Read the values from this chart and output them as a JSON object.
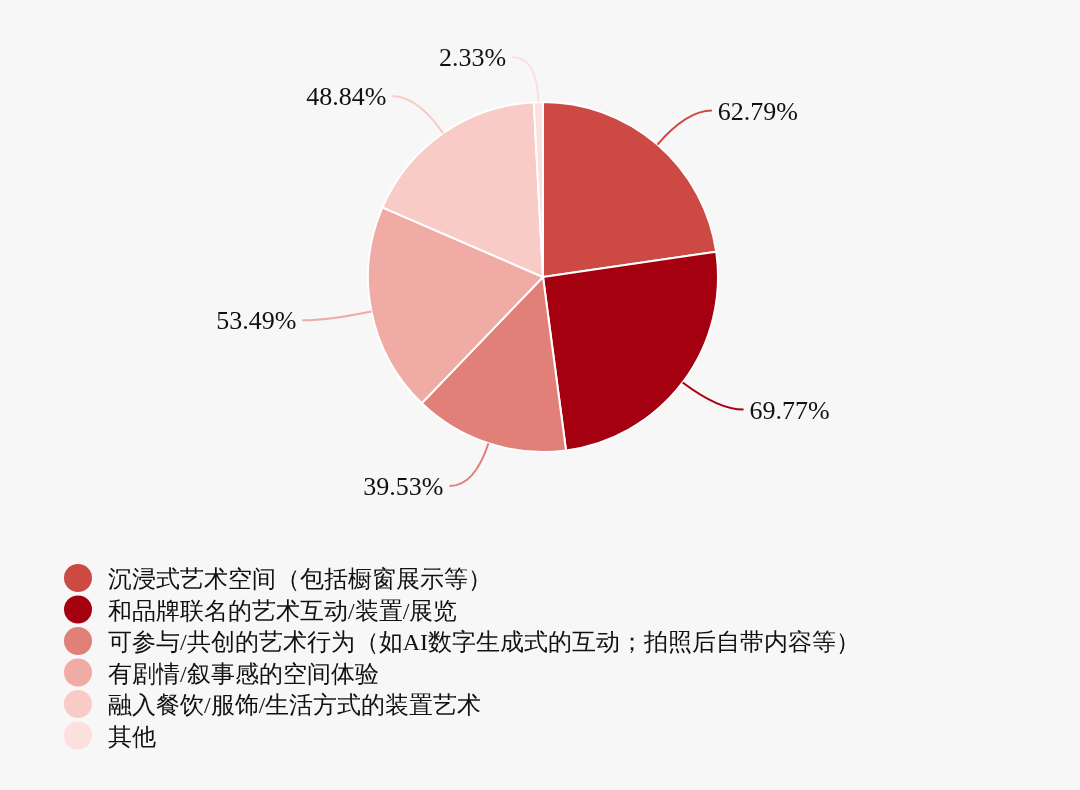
{
  "chart_data": {
    "type": "pie",
    "categories": [
      "沉浸式艺术空间（包括橱窗展示等）",
      "和品牌联名的艺术互动/装置/展览",
      "可参与/共创的艺术行为（如AI数字生成式的互动；拍照后自带内容等）",
      "有剧情/叙事感的空间体验",
      "融入餐饮/服饰/生活方式的装置艺术",
      "其他"
    ],
    "values": [
      62.79,
      69.77,
      39.53,
      53.49,
      48.84,
      2.33
    ],
    "colors": [
      "#cd4944",
      "#a50010",
      "#e17f79",
      "#f0aba5",
      "#f8cbc6",
      "#fbe0de"
    ],
    "value_labels": [
      "62.79%",
      "69.77%",
      "39.53%",
      "53.49%",
      "48.84%",
      "2.33%"
    ],
    "legend": "bottom"
  }
}
